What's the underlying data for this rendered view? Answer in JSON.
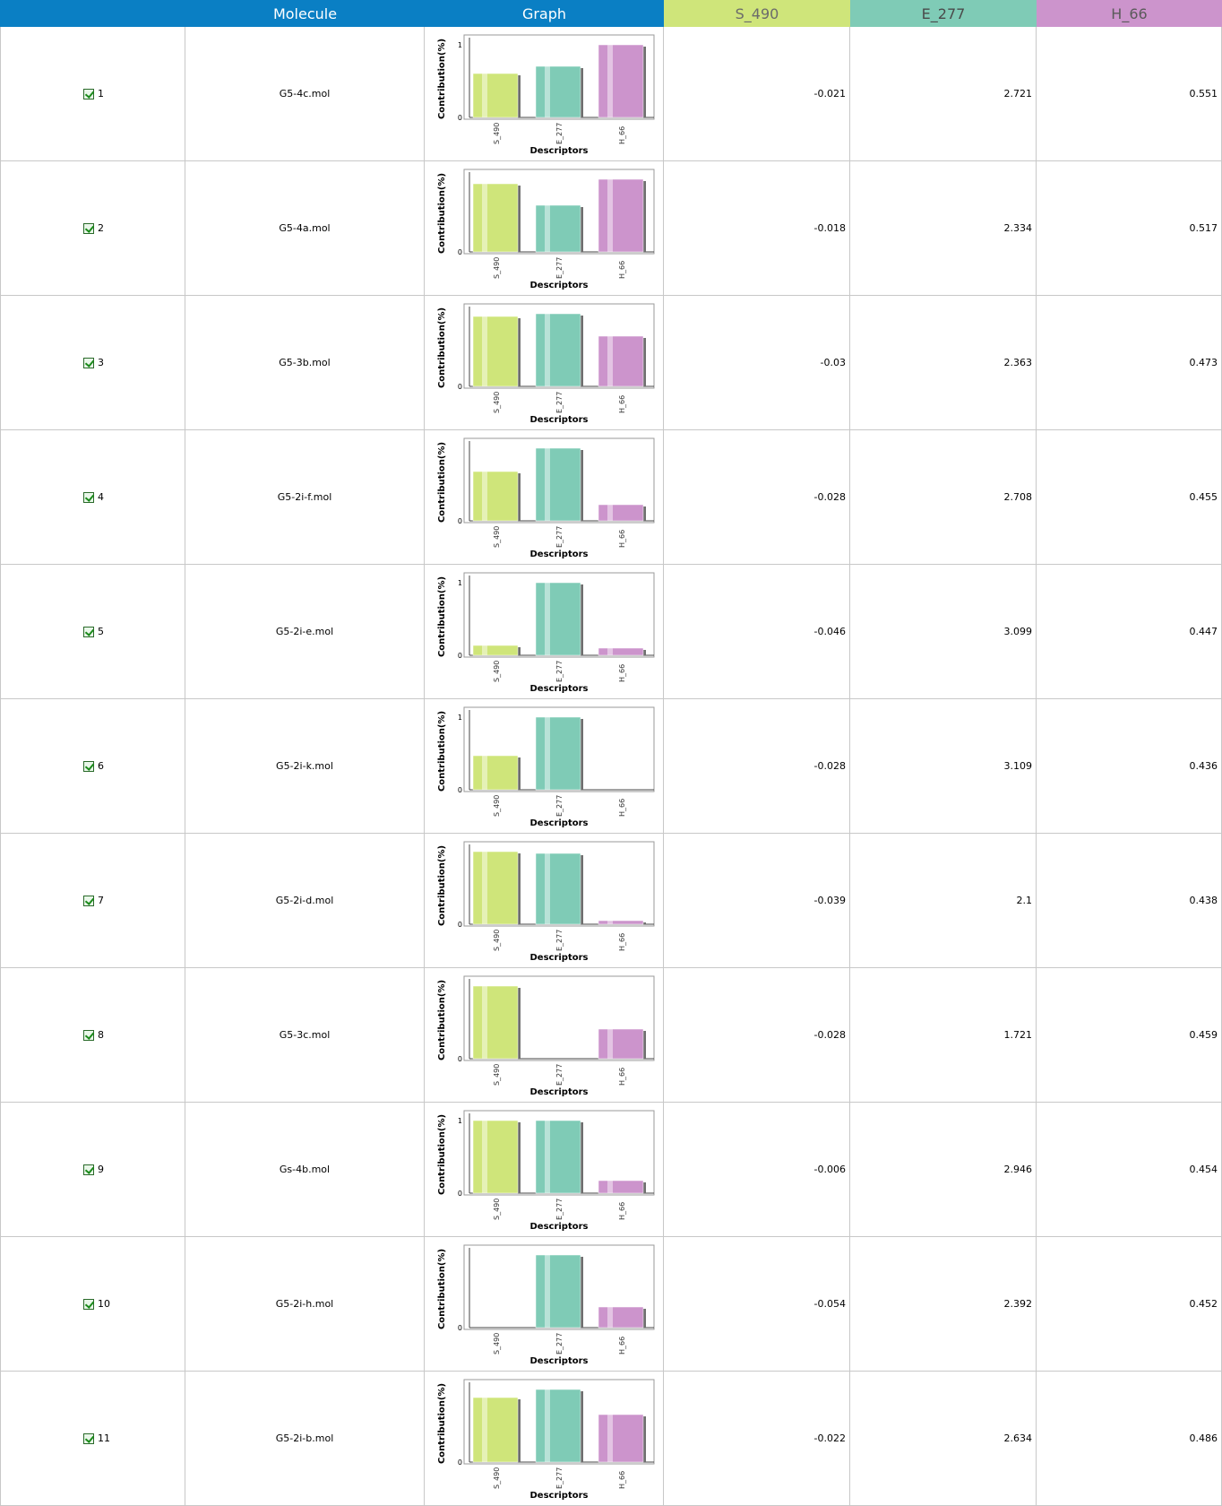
{
  "columns": {
    "id": "",
    "molecule": "Molecule",
    "graph": "Graph",
    "s": "S_490",
    "e": "E_277",
    "h": "H_66"
  },
  "colors": {
    "header_blue": "#0a7fc4",
    "s": "#cfe57a",
    "e": "#7fcbb6",
    "h": "#cc94cc"
  },
  "graph_text": {
    "ylabel": "Contribution(%)",
    "xlabel": "Descriptors",
    "xticks": [
      "S_490",
      "E_277",
      "H_66"
    ],
    "ytick_top": "1",
    "ytick_bottom": "0"
  },
  "rows": [
    {
      "id": "1",
      "checked": true,
      "molecule": "G5-4c.mol",
      "s": "-0.021",
      "e": "2.721",
      "h": "0.551",
      "bars": [
        0.6,
        0.7,
        1.0
      ],
      "show_top_tick": true
    },
    {
      "id": "2",
      "checked": true,
      "molecule": "G5-4a.mol",
      "s": "-0.018",
      "e": "2.334",
      "h": "0.517",
      "bars": [
        0.94,
        0.64,
        1.0
      ],
      "show_top_tick": false
    },
    {
      "id": "3",
      "checked": true,
      "molecule": "G5-3b.mol",
      "s": "-0.03",
      "e": "2.363",
      "h": "0.473",
      "bars": [
        0.96,
        1.0,
        0.69
      ],
      "show_top_tick": false
    },
    {
      "id": "4",
      "checked": true,
      "molecule": "G5-2i-f.mol",
      "s": "-0.028",
      "e": "2.708",
      "h": "0.455",
      "bars": [
        0.68,
        1.0,
        0.22
      ],
      "show_top_tick": false
    },
    {
      "id": "5",
      "checked": true,
      "molecule": "G5-2i-e.mol",
      "s": "-0.046",
      "e": "3.099",
      "h": "0.447",
      "bars": [
        0.14,
        1.0,
        0.1
      ],
      "show_top_tick": true
    },
    {
      "id": "6",
      "checked": true,
      "molecule": "G5-2i-k.mol",
      "s": "-0.028",
      "e": "3.109",
      "h": "0.436",
      "bars": [
        0.47,
        1.0,
        0.0
      ],
      "show_top_tick": true
    },
    {
      "id": "7",
      "checked": true,
      "molecule": "G5-2i-d.mol",
      "s": "-0.039",
      "e": "2.1",
      "h": "0.438",
      "bars": [
        1.0,
        0.97,
        0.05
      ],
      "show_top_tick": false
    },
    {
      "id": "8",
      "checked": true,
      "molecule": "G5-3c.mol",
      "s": "-0.028",
      "e": "1.721",
      "h": "0.459",
      "bars": [
        1.0,
        0.0,
        0.41
      ],
      "show_top_tick": false
    },
    {
      "id": "9",
      "checked": true,
      "molecule": "Gs-4b.mol",
      "s": "-0.006",
      "e": "2.946",
      "h": "0.454",
      "bars": [
        1.0,
        1.0,
        0.17
      ],
      "show_top_tick": true
    },
    {
      "id": "10",
      "checked": true,
      "molecule": "G5-2i-h.mol",
      "s": "-0.054",
      "e": "2.392",
      "h": "0.452",
      "bars": [
        0.0,
        1.0,
        0.29
      ],
      "show_top_tick": false
    },
    {
      "id": "11",
      "checked": true,
      "molecule": "G5-2i-b.mol",
      "s": "-0.022",
      "e": "2.634",
      "h": "0.486",
      "bars": [
        0.89,
        1.0,
        0.65
      ],
      "show_top_tick": false
    }
  ]
}
